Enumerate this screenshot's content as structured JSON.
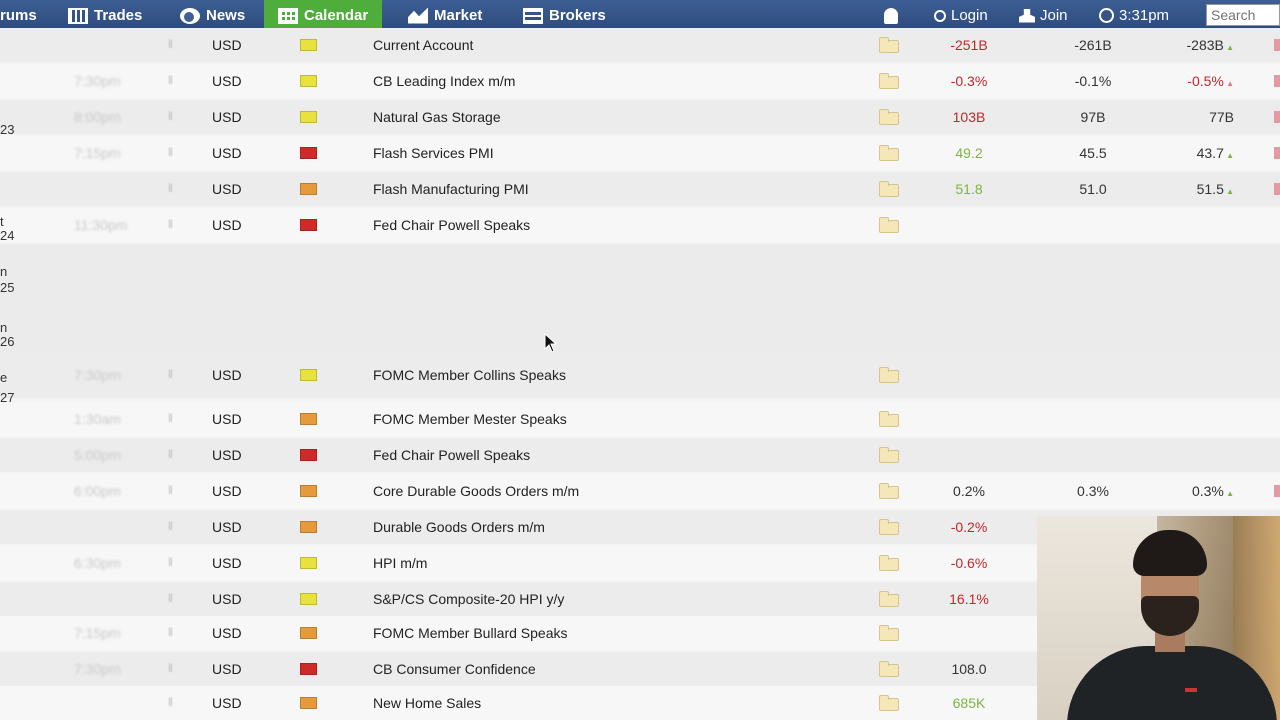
{
  "nav": {
    "items": [
      {
        "label": "rums",
        "icon": "none"
      },
      {
        "label": "Trades",
        "icon": "trades-icon"
      },
      {
        "label": "News",
        "icon": "news-icon"
      },
      {
        "label": "Calendar",
        "icon": "calendar-icon",
        "active": true
      },
      {
        "label": "Market",
        "icon": "market-icon"
      },
      {
        "label": "Brokers",
        "icon": "brokers-icon"
      }
    ],
    "login_label": "Login",
    "join_label": "Join",
    "time": "3:31pm",
    "search_placeholder": "Search",
    "accent_color": "#4fad3b",
    "bar_color": "#3d5f95"
  },
  "date_fragments": [
    "23",
    "t",
    "24",
    "n",
    "25",
    "n",
    "26",
    "e",
    "27"
  ],
  "rows": [
    {
      "time": "",
      "currency": "USD",
      "impact": "low",
      "event": "Current Account",
      "actual": "-251B",
      "actual_color": "red",
      "forecast": "-261B",
      "previous": "-283B",
      "prev_mark": "green"
    },
    {
      "time": "7:30pm",
      "currency": "USD",
      "impact": "low",
      "event": "CB Leading Index m/m",
      "actual": "-0.3%",
      "actual_color": "red",
      "forecast": "-0.1%",
      "previous": "-0.5%",
      "prev_color": "red",
      "prev_mark": "red"
    },
    {
      "time": "8:00pm",
      "currency": "USD",
      "impact": "low",
      "event": "Natural Gas Storage",
      "actual": "103B",
      "actual_color": "red",
      "forecast": "97B",
      "previous": "77B"
    },
    {
      "time": "7:15pm",
      "currency": "USD",
      "impact": "high",
      "event": "Flash Services PMI",
      "actual": "49.2",
      "actual_color": "green",
      "forecast": "45.5",
      "previous": "43.7",
      "prev_mark": "green"
    },
    {
      "time": "",
      "currency": "USD",
      "impact": "med",
      "event": "Flash Manufacturing PMI",
      "actual": "51.8",
      "actual_color": "green",
      "forecast": "51.0",
      "previous": "51.5",
      "prev_mark": "green"
    },
    {
      "time": "11:30pm",
      "currency": "USD",
      "impact": "high",
      "event": "Fed Chair Powell Speaks",
      "actual": "",
      "forecast": "",
      "previous": ""
    },
    {
      "blank": true
    },
    {
      "blank": true
    },
    {
      "time": "7:30pm",
      "currency": "USD",
      "impact": "low",
      "event": "FOMC Member Collins Speaks",
      "actual": "",
      "forecast": "",
      "previous": ""
    },
    {
      "time": "1:30am",
      "currency": "USD",
      "impact": "med",
      "event": "FOMC Member Mester Speaks",
      "actual": "",
      "forecast": "",
      "previous": ""
    },
    {
      "time": "5:00pm",
      "currency": "USD",
      "impact": "high",
      "event": "Fed Chair Powell Speaks",
      "actual": "",
      "forecast": "",
      "previous": ""
    },
    {
      "time": "6:00pm",
      "currency": "USD",
      "impact": "med",
      "event": "Core Durable Goods Orders m/m",
      "actual": "0.2%",
      "actual_color": "black",
      "forecast": "0.3%",
      "previous": "0.3%",
      "prev_mark": "green"
    },
    {
      "time": "",
      "currency": "USD",
      "impact": "med",
      "event": "Durable Goods Orders m/m",
      "actual": "-0.2%",
      "actual_color": "red",
      "forecast": "",
      "previous": ""
    },
    {
      "time": "6:30pm",
      "currency": "USD",
      "impact": "low",
      "event": "HPI m/m",
      "actual": "-0.6%",
      "actual_color": "red",
      "forecast": "",
      "previous": ""
    },
    {
      "time": "",
      "currency": "USD",
      "impact": "low",
      "event": "S&P/CS Composite-20 HPI y/y",
      "actual": "16.1%",
      "actual_color": "red",
      "forecast": "",
      "previous": ""
    },
    {
      "time": "7:15pm",
      "currency": "USD",
      "impact": "med",
      "event": "FOMC Member Bullard Speaks",
      "actual": "",
      "forecast": "",
      "previous": ""
    },
    {
      "time": "7:30pm",
      "currency": "USD",
      "impact": "high",
      "event": "CB Consumer Confidence",
      "actual": "108.0",
      "actual_color": "black",
      "forecast": "",
      "previous": ""
    },
    {
      "time": "",
      "currency": "USD",
      "impact": "med",
      "event": "New Home Sales",
      "actual": "685K",
      "actual_color": "green",
      "forecast": "",
      "previous": ""
    }
  ],
  "colors": {
    "impact_low": "#e8e23c",
    "impact_med": "#e59a3c",
    "impact_high": "#cf2a2a",
    "actual_red": "#c0272d",
    "actual_green": "#7bb544"
  }
}
